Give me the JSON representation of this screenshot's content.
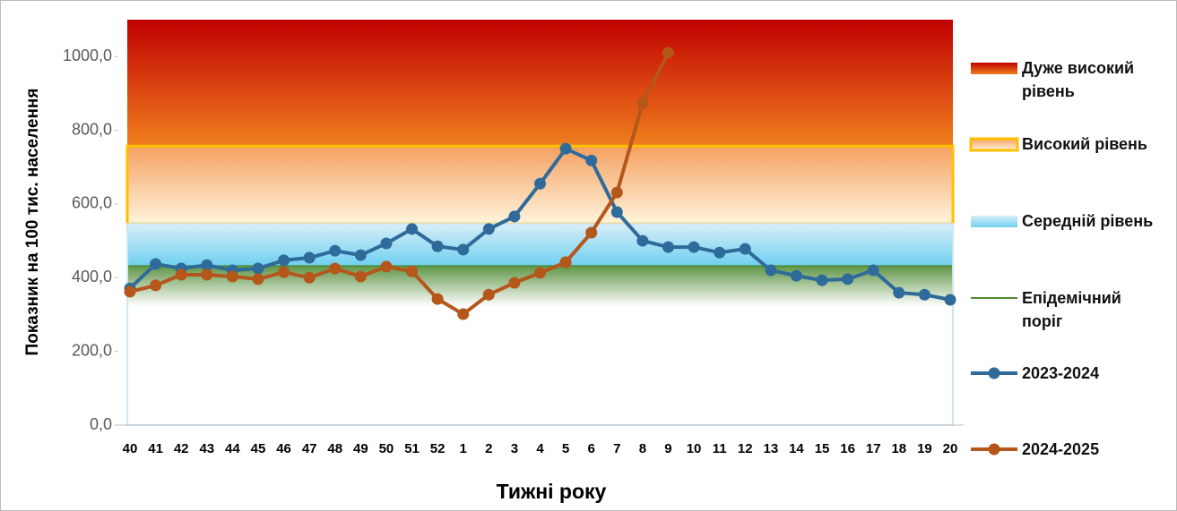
{
  "chart_data": {
    "type": "line",
    "ylabel": "Показник на 100 тис. населення",
    "xlabel": "Тижні року",
    "categories": [
      "40",
      "41",
      "42",
      "43",
      "44",
      "45",
      "46",
      "47",
      "48",
      "49",
      "50",
      "51",
      "52",
      "1",
      "2",
      "3",
      "4",
      "5",
      "6",
      "7",
      "8",
      "9",
      "10",
      "11",
      "12",
      "13",
      "14",
      "15",
      "16",
      "17",
      "18",
      "19",
      "20"
    ],
    "ylim": [
      0,
      1100
    ],
    "yticks": [
      {
        "value": 0,
        "label": "0,0"
      },
      {
        "value": 200,
        "label": "200,0"
      },
      {
        "value": 400,
        "label": "400,0"
      },
      {
        "value": 600,
        "label": "600,0"
      },
      {
        "value": 800,
        "label": "800,0"
      },
      {
        "value": 1000,
        "label": "1000,0"
      }
    ],
    "bands": [
      {
        "name": "Дуже високий рівень",
        "from": 757,
        "to": 1100,
        "colors": [
          "#c00000",
          "#f0801e"
        ]
      },
      {
        "name": "Високий рівень",
        "from": 546,
        "to": 757,
        "colors": [
          "#f4a060",
          "#fff4dc"
        ],
        "border": "#ffc000"
      },
      {
        "name": "Середній рівень",
        "from": 432,
        "to": 546,
        "colors": [
          "#d8eef8",
          "#6fd0f0"
        ]
      }
    ],
    "threshold": {
      "name": "Епідемічний поріг",
      "value": 432,
      "color": "#4e8a32"
    },
    "series": [
      {
        "name": "2023-2024",
        "color": "#2f6b9a",
        "values": [
          371,
          437,
          425,
          434,
          420,
          425,
          447,
          454,
          473,
          461,
          493,
          532,
          485,
          476,
          532,
          566,
          655,
          750,
          718,
          578,
          500,
          483,
          483,
          468,
          478,
          420,
          405,
          393,
          396,
          420,
          359,
          354,
          340
        ]
      },
      {
        "name": "2024-2025",
        "color": "#b5561b",
        "values": [
          362,
          379,
          408,
          408,
          403,
          396,
          415,
          400,
          425,
          403,
          430,
          417,
          342,
          301,
          354,
          386,
          413,
          442,
          522,
          631,
          874,
          1010,
          null,
          null,
          null,
          null,
          null,
          null,
          null,
          null,
          null,
          null,
          null
        ]
      }
    ]
  }
}
